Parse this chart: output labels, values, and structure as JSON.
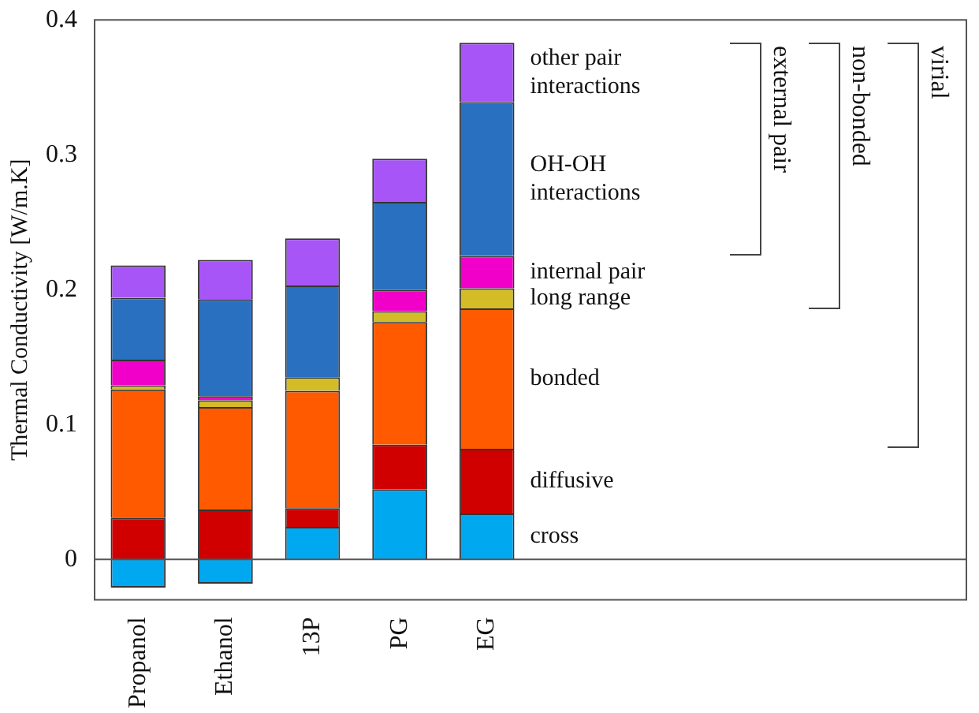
{
  "chart_data": {
    "type": "bar",
    "ylabel": "Thermal Conductivity [W/m.K]",
    "categories": [
      "Propanol",
      "Ethanol",
      "13P",
      "PG",
      "EG"
    ],
    "stacked": true,
    "series": [
      {
        "name": "cross",
        "color": "#00a8f0",
        "values": [
          -0.021,
          -0.018,
          0.024,
          0.052,
          0.034
        ]
      },
      {
        "name": "diffusive",
        "color": "#d00000",
        "values": [
          0.031,
          0.037,
          0.014,
          0.033,
          0.048
        ]
      },
      {
        "name": "bonded",
        "color": "#ff5a00",
        "values": [
          0.095,
          0.076,
          0.087,
          0.091,
          0.104
        ]
      },
      {
        "name": "long range",
        "color": "#d4bc26",
        "values": [
          0.003,
          0.005,
          0.01,
          0.008,
          0.015
        ]
      },
      {
        "name": "internal pair",
        "color": "#f000c8",
        "values": [
          0.019,
          0.003,
          0,
          0.016,
          0.024
        ]
      },
      {
        "name": "OH-OH interactions",
        "color": "#2a70c0",
        "values": [
          0.046,
          0.072,
          0.068,
          0.065,
          0.114
        ]
      },
      {
        "name": "other pair interactions",
        "color": "#a855f8",
        "values": [
          0.024,
          0.029,
          0.035,
          0.032,
          0.044
        ]
      }
    ],
    "ylim": [
      -0.03,
      0.4
    ],
    "yticks": [
      0,
      0.1,
      0.2,
      0.3,
      0.4
    ],
    "annotations": [
      "external pair",
      "non-bonded",
      "virial"
    ]
  }
}
